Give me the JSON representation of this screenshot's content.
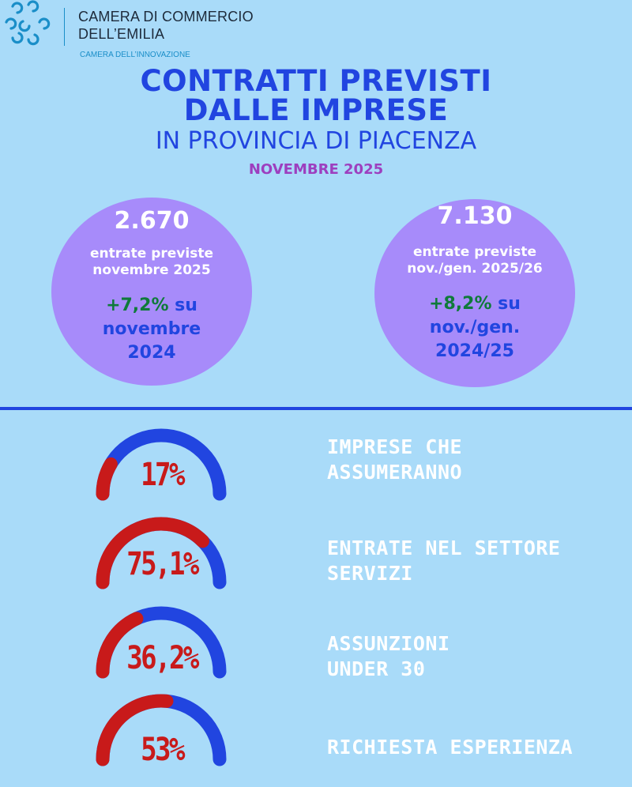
{
  "header": {
    "org_line1": "CAMERA DI COMMERCIO",
    "org_line2": "DELL’EMILIA",
    "org_sub": "CAMERA DELL’INNOVAZIONE"
  },
  "title": {
    "line1": "CONTRATTI PREVISTI",
    "line2": "DALLE IMPRESE",
    "subtitle": "IN PROVINCIA DI PIACENZA",
    "month": "NOVEMBRE  2025"
  },
  "circles": [
    {
      "number": "2.670",
      "label1": "entrate previste",
      "label2": "novembre 2025",
      "growth_value": "+7,2%",
      "growth_su": " su",
      "growth_line2": "novembre",
      "growth_line3": "2024"
    },
    {
      "number": "7.130",
      "label1": "entrate previste",
      "label2": "nov./gen. 2025/26",
      "growth_value": "+8,2%",
      "growth_su": " su",
      "growth_line2": "nov./gen.",
      "growth_line3": "2024/25"
    }
  ],
  "gauges": [
    {
      "value": "17%",
      "fraction": 0.17,
      "label1": "IMPRESE CHE",
      "label2": "ASSUMERANNO"
    },
    {
      "value": "75,1%",
      "fraction": 0.751,
      "label1": "ENTRATE NEL SETTORE",
      "label2": "SERVIZI"
    },
    {
      "value": "36,2%",
      "fraction": 0.362,
      "label1": "ASSUNZIONI",
      "label2": "UNDER 30"
    },
    {
      "value": "53%",
      "fraction": 0.53,
      "label1": "RICHIESTA ESPERIENZA",
      "label2": ""
    }
  ],
  "colors": {
    "background": "#a9dbf9",
    "title_blue": "#2145e0",
    "month_purple": "#9d3fbf",
    "circle_purple": "#a78bfa",
    "gauge_red": "#c81a1a",
    "gauge_blue": "#2145e0",
    "growth_green": "#0f7a3a"
  }
}
